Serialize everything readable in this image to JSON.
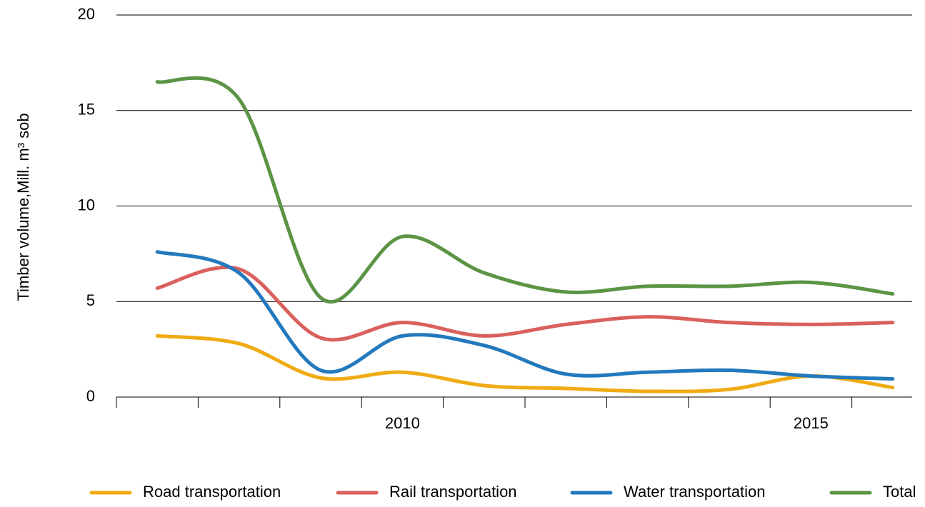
{
  "chart_data": {
    "type": "line",
    "y_label": "Timber volume,Mill.  m³ sob",
    "categories": [
      null,
      null,
      null,
      "2010",
      null,
      null,
      null,
      null,
      "2015",
      null
    ],
    "ylim": [
      0,
      20
    ],
    "yticks": [
      0,
      5,
      10,
      15,
      20
    ],
    "grid": true,
    "legend": "bottom",
    "series": [
      {
        "name": "Road transportation",
        "color": "#f0ab13",
        "values": [
          3.2,
          2.8,
          1.0,
          1.3,
          0.6,
          0.45,
          0.3,
          0.4,
          1.1,
          0.5
        ]
      },
      {
        "name": "Rail transportation",
        "color": "#d9605c",
        "values": [
          5.7,
          6.7,
          3.1,
          3.9,
          3.2,
          3.8,
          4.2,
          3.9,
          3.8,
          3.9
        ]
      },
      {
        "name": "Water transportation",
        "color": "#2279bd",
        "values": [
          7.6,
          6.5,
          1.4,
          3.2,
          2.7,
          1.2,
          1.3,
          1.4,
          1.1,
          0.95
        ]
      },
      {
        "name": "Total",
        "color": "#5b9444",
        "values": [
          16.5,
          15.6,
          5.2,
          8.4,
          6.5,
          5.5,
          5.8,
          5.8,
          6.0,
          5.4
        ]
      }
    ]
  }
}
